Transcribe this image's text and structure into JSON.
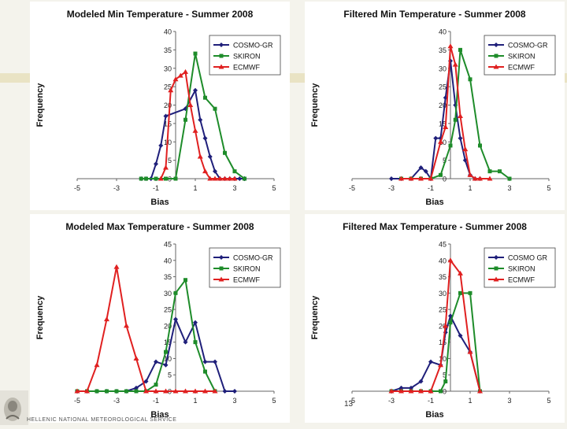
{
  "footer": {
    "org_text": "HELLENIC NATIONAL METEOROLOGICAL SERVICE",
    "slide_number": "13"
  },
  "colors": {
    "cosmo": "#1f1f7a",
    "skiron": "#1e8c2a",
    "ecmwf": "#e02020"
  },
  "chart_data": [
    {
      "type": "line",
      "title": "Modeled Min Temperature - Summer 2008",
      "xlabel": "Bias",
      "ylabel": "Frequency",
      "xlim": [
        -5,
        5
      ],
      "ylim": [
        0,
        40
      ],
      "xticks": [
        -5,
        -3,
        -1,
        1,
        3,
        5
      ],
      "yticks": [
        0,
        5,
        10,
        15,
        20,
        25,
        30,
        35,
        40
      ],
      "x": [
        -1.75,
        -1.5,
        -1.25,
        -1.0,
        -0.75,
        -0.5,
        -0.25,
        0.0,
        0.25,
        0.5,
        0.75,
        1.0,
        1.25,
        1.5,
        1.75,
        2.0,
        2.25,
        2.5,
        2.75,
        3.0,
        3.25,
        3.5
      ],
      "series": [
        {
          "name": "COSMO-GR",
          "color": "#1f1f7a",
          "marker": "diamond",
          "values": [
            0,
            0,
            0,
            4,
            9,
            17,
            19,
            24,
            16,
            11,
            6,
            2,
            0,
            0,
            0,
            0,
            0,
            0,
            0,
            0,
            0,
            0
          ],
          "x": [
            -1.75,
            -1.5,
            -1.25,
            -1.0,
            -0.75,
            -0.5,
            0.5,
            1.0,
            1.25,
            1.5,
            1.75,
            2.0,
            2.25,
            2.5,
            2.75,
            3.0,
            3.25,
            3.5,
            3.5,
            3.5,
            3.5,
            3.5
          ]
        },
        {
          "name": "SKIRON",
          "color": "#1e8c2a",
          "marker": "square",
          "x": [
            -1.75,
            -1.5,
            -1.0,
            -0.5,
            0.0,
            0.5,
            1.0,
            1.5,
            2.0,
            2.5,
            3.0,
            3.5
          ],
          "values": [
            0,
            0,
            0,
            0,
            0,
            16,
            34,
            22,
            19,
            7,
            2,
            0
          ]
        },
        {
          "name": "ECMWF",
          "color": "#e02020",
          "marker": "triangle",
          "x": [
            -0.75,
            -0.5,
            -0.25,
            0.0,
            0.25,
            0.5,
            0.75,
            1.0,
            1.25,
            1.5,
            1.75,
            2.0,
            2.25,
            2.5,
            2.75,
            3.0
          ],
          "values": [
            0,
            3,
            24,
            27,
            28,
            29,
            20,
            13,
            6,
            2,
            0,
            0,
            0,
            0,
            0,
            0
          ]
        }
      ],
      "legend": [
        "COSMO-GR",
        "SKIRON",
        "ECMWF"
      ]
    },
    {
      "type": "line",
      "title": "Filtered Min Temperature - Summer 2008",
      "xlabel": "Bias",
      "ylabel": "Frequency",
      "xlim": [
        -5,
        5
      ],
      "ylim": [
        0,
        40
      ],
      "xticks": [
        -5,
        -3,
        -1,
        1,
        3,
        5
      ],
      "yticks": [
        0,
        5,
        10,
        15,
        20,
        25,
        30,
        35,
        40
      ],
      "series": [
        {
          "name": "COSMO-GR",
          "color": "#1f1f7a",
          "marker": "diamond",
          "x": [
            -3.0,
            -2.5,
            -2.0,
            -1.5,
            -1.25,
            -1.0,
            -0.75,
            -0.5,
            -0.25,
            0.0,
            0.25,
            0.5,
            0.75,
            1.0,
            1.25,
            1.5
          ],
          "values": [
            0,
            0,
            0,
            3,
            2,
            0,
            11,
            11,
            22,
            32,
            20,
            11,
            5,
            1,
            0,
            0
          ]
        },
        {
          "name": "SKIRON",
          "color": "#1e8c2a",
          "marker": "square",
          "x": [
            -2.5,
            -2.0,
            -1.5,
            -1.0,
            -0.5,
            0.0,
            0.25,
            0.5,
            1.0,
            1.5,
            2.0,
            2.5,
            3.0
          ],
          "values": [
            0,
            0,
            0,
            0,
            1,
            9,
            16,
            35,
            27,
            9,
            2,
            2,
            0
          ]
        },
        {
          "name": "ECMWF",
          "color": "#e02020",
          "marker": "triangle",
          "x": [
            -2.5,
            -2.0,
            -1.5,
            -1.0,
            -0.5,
            -0.25,
            0.0,
            0.25,
            0.5,
            0.75,
            1.0,
            1.25,
            1.5,
            2.0
          ],
          "values": [
            0,
            0,
            0,
            0,
            10,
            14,
            36,
            31,
            17,
            8,
            1,
            0,
            0,
            0
          ]
        }
      ],
      "legend": [
        "COSMO-GR",
        "SKIRON",
        "ECMWF"
      ]
    },
    {
      "type": "line",
      "title": "Modeled Max Temperature - Summer 2008",
      "xlabel": "Bias",
      "ylabel": "Frequency",
      "xlim": [
        -5,
        5
      ],
      "ylim": [
        0,
        45
      ],
      "xticks": [
        -5,
        -3,
        -1,
        1,
        3,
        5
      ],
      "yticks": [
        0,
        5,
        10,
        15,
        20,
        25,
        30,
        35,
        40,
        45
      ],
      "series": [
        {
          "name": "COSMO-GR",
          "color": "#1f1f7a",
          "marker": "diamond",
          "x": [
            -5.0,
            -4.5,
            -4.0,
            -3.5,
            -3.0,
            -2.5,
            -2.0,
            -1.5,
            -1.0,
            -0.5,
            0.0,
            0.5,
            1.0,
            1.5,
            2.0,
            2.5,
            3.0
          ],
          "values": [
            0,
            0,
            0,
            0,
            0,
            0,
            1,
            3,
            9,
            8,
            22,
            15,
            21,
            9,
            9,
            0,
            0
          ]
        },
        {
          "name": "SKIRON",
          "color": "#1e8c2a",
          "marker": "square",
          "x": [
            -5.0,
            -4.5,
            -4.0,
            -3.5,
            -3.0,
            -2.5,
            -2.0,
            -1.5,
            -1.0,
            -0.5,
            0.0,
            0.5,
            1.0,
            1.5,
            2.0
          ],
          "values": [
            0,
            0,
            0,
            0,
            0,
            0,
            0,
            0,
            2,
            12,
            30,
            34,
            15,
            6,
            0
          ]
        },
        {
          "name": "ECMWF",
          "color": "#e02020",
          "marker": "triangle",
          "x": [
            -5.0,
            -4.5,
            -4.0,
            -3.5,
            -3.0,
            -2.5,
            -2.0,
            -1.5,
            -1.0,
            -0.5,
            0.0,
            0.5,
            1.0,
            1.5,
            2.0
          ],
          "values": [
            0,
            0,
            8,
            22,
            38,
            20,
            10,
            0,
            0,
            0,
            0,
            0,
            0,
            0,
            0
          ]
        }
      ],
      "legend": [
        "COSMO-GR",
        "SKIRON",
        "ECMWF"
      ]
    },
    {
      "type": "line",
      "title": "Filtered Max Temperature - Summer 2008",
      "xlabel": "Bias",
      "ylabel": "Frequency",
      "xlim": [
        -5,
        5
      ],
      "ylim": [
        0,
        45
      ],
      "xticks": [
        -5,
        -3,
        -1,
        1,
        3,
        5
      ],
      "yticks": [
        0,
        5,
        10,
        15,
        20,
        25,
        30,
        35,
        40,
        45
      ],
      "series": [
        {
          "name": "COSMO GR",
          "color": "#1f1f7a",
          "marker": "diamond",
          "x": [
            -3.0,
            -2.5,
            -2.0,
            -1.5,
            -1.0,
            -0.5,
            -0.25,
            0.0,
            0.5,
            1.0,
            1.5
          ],
          "values": [
            0,
            1,
            1,
            3,
            9,
            8,
            18,
            23,
            17,
            12,
            0
          ]
        },
        {
          "name": "SKIRON",
          "color": "#1e8c2a",
          "marker": "square",
          "x": [
            -3.0,
            -2.5,
            -2.0,
            -1.5,
            -1.0,
            -0.5,
            -0.25,
            0.0,
            0.5,
            1.0,
            1.5
          ],
          "values": [
            0,
            0,
            0,
            0,
            0,
            0,
            3,
            21,
            30,
            30,
            0
          ]
        },
        {
          "name": "ECMWF",
          "color": "#e02020",
          "marker": "triangle",
          "x": [
            -3.0,
            -2.5,
            -2.0,
            -1.5,
            -1.0,
            -0.5,
            -0.25,
            0.0,
            0.5,
            1.0,
            1.5
          ],
          "values": [
            0,
            0,
            0,
            0,
            0,
            8,
            20,
            40,
            36,
            12,
            0
          ]
        }
      ],
      "legend": [
        "COSMO GR",
        "SKIRON",
        "ECMWF"
      ]
    }
  ]
}
